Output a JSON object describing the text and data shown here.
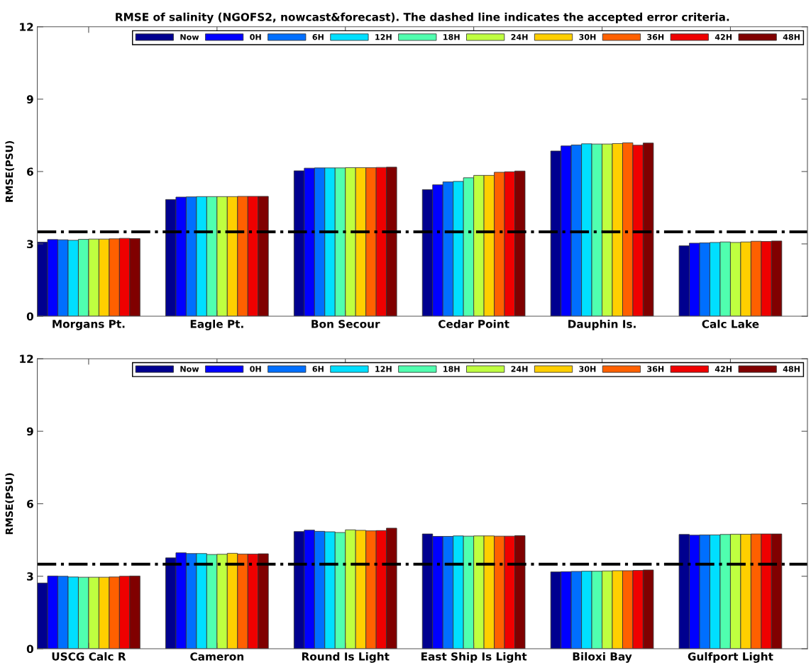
{
  "chart_data": [
    {
      "type": "bar",
      "title": "RMSE of salinity (NGOFS2, nowcast&forecast). The dashed line indicates the accepted error criteria.",
      "ylabel": "RMSE(PSU)",
      "categories": [
        "Morgans Pt.",
        "Eagle Pt.",
        "Bon Secour",
        "Cedar Point",
        "Dauphin Is.",
        "Calc Lake"
      ],
      "series": [
        {
          "name": "Now",
          "color": "#00008f",
          "values": [
            3.07,
            4.84,
            6.03,
            5.25,
            6.85,
            2.92
          ]
        },
        {
          "name": "0H",
          "color": "#0000ff",
          "values": [
            3.18,
            4.94,
            6.14,
            5.45,
            7.06,
            3.03
          ]
        },
        {
          "name": "6H",
          "color": "#006fff",
          "values": [
            3.17,
            4.95,
            6.15,
            5.57,
            7.1,
            3.04
          ]
        },
        {
          "name": "12H",
          "color": "#00dfff",
          "values": [
            3.15,
            4.96,
            6.15,
            5.59,
            7.15,
            3.06
          ]
        },
        {
          "name": "18H",
          "color": "#50ffaf",
          "values": [
            3.19,
            4.96,
            6.15,
            5.74,
            7.14,
            3.08
          ]
        },
        {
          "name": "24H",
          "color": "#bfff40",
          "values": [
            3.2,
            4.96,
            6.16,
            5.84,
            7.14,
            3.06
          ]
        },
        {
          "name": "30H",
          "color": "#ffcf00",
          "values": [
            3.2,
            4.96,
            6.16,
            5.84,
            7.16,
            3.08
          ]
        },
        {
          "name": "36H",
          "color": "#ff6000",
          "values": [
            3.21,
            4.97,
            6.16,
            5.97,
            7.19,
            3.11
          ]
        },
        {
          "name": "42H",
          "color": "#ef0000",
          "values": [
            3.23,
            4.97,
            6.17,
            5.99,
            7.09,
            3.1
          ]
        },
        {
          "name": "48H",
          "color": "#800000",
          "values": [
            3.22,
            4.97,
            6.18,
            6.02,
            7.18,
            3.12
          ]
        }
      ],
      "ylim": [
        0,
        12
      ],
      "yticks": [
        0,
        3,
        6,
        9,
        12
      ],
      "grid": false,
      "legend": "top right",
      "ref_lines": [
        {
          "axis": "y",
          "value": 3.5,
          "color": "#000000",
          "line_style": "dashdot"
        }
      ]
    },
    {
      "type": "bar",
      "ylabel": "RMSE(PSU)",
      "categories": [
        "USCG Calc R",
        "Cameron",
        "Round Is Light",
        "East Ship Is Light",
        "Biloxi Bay",
        "Gulfport Light"
      ],
      "series": [
        {
          "name": "Now",
          "color": "#00008f",
          "values": [
            2.72,
            3.76,
            4.85,
            4.75,
            3.18,
            4.73
          ]
        },
        {
          "name": "0H",
          "color": "#0000ff",
          "values": [
            3.01,
            3.97,
            4.91,
            4.65,
            3.19,
            4.7
          ]
        },
        {
          "name": "6H",
          "color": "#006fff",
          "values": [
            3.0,
            3.94,
            4.86,
            4.65,
            3.2,
            4.71
          ]
        },
        {
          "name": "12H",
          "color": "#00dfff",
          "values": [
            2.97,
            3.94,
            4.84,
            4.67,
            3.21,
            4.71
          ]
        },
        {
          "name": "18H",
          "color": "#50ffaf",
          "values": [
            2.96,
            3.9,
            4.81,
            4.66,
            3.21,
            4.73
          ]
        },
        {
          "name": "24H",
          "color": "#bfff40",
          "values": [
            2.96,
            3.91,
            4.92,
            4.67,
            3.22,
            4.74
          ]
        },
        {
          "name": "30H",
          "color": "#ffcf00",
          "values": [
            2.96,
            3.95,
            4.9,
            4.67,
            3.23,
            4.74
          ]
        },
        {
          "name": "36H",
          "color": "#ff6000",
          "values": [
            2.97,
            3.92,
            4.88,
            4.66,
            3.23,
            4.75
          ]
        },
        {
          "name": "42H",
          "color": "#ef0000",
          "values": [
            3.0,
            3.92,
            4.89,
            4.66,
            3.24,
            4.75
          ]
        },
        {
          "name": "48H",
          "color": "#800000",
          "values": [
            3.01,
            3.93,
            4.99,
            4.68,
            3.26,
            4.75
          ]
        }
      ],
      "ylim": [
        0,
        12
      ],
      "yticks": [
        0,
        3,
        6,
        9,
        12
      ],
      "grid": false,
      "legend": "top right",
      "ref_lines": [
        {
          "axis": "y",
          "value": 3.5,
          "color": "#000000",
          "line_style": "dashdot"
        }
      ]
    }
  ]
}
